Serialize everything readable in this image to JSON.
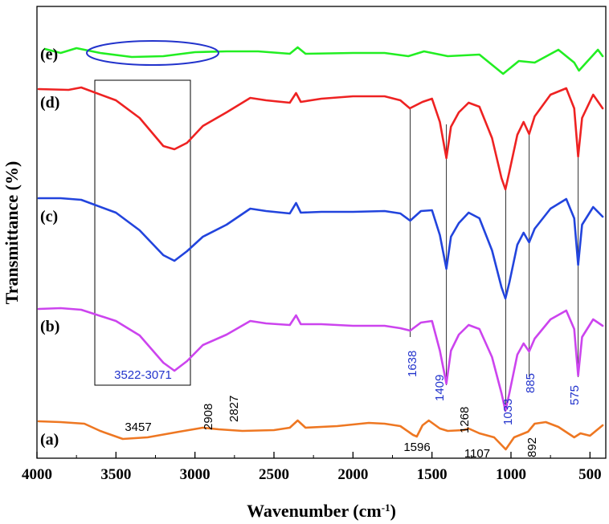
{
  "chart_data": {
    "type": "line",
    "xlabel": "Wavenumber (cm",
    "xlabel_sup": "-1",
    "xlabel_end": ")",
    "ylabel": "Transmittance (%)",
    "xlim": [
      4000,
      400
    ],
    "x_reversed": true,
    "xticks": [
      4000,
      3500,
      3000,
      2500,
      2000,
      1500,
      1000,
      500
    ],
    "xtick_labels": [
      "4000",
      "3500",
      "3000",
      "2500",
      "2000",
      "1500",
      "1000",
      "500"
    ],
    "y_units": "arbitrary (curves stacked with offsets)",
    "series": [
      {
        "name": "(e)",
        "color": "#22ee22",
        "points": [
          [
            3950,
            61
          ],
          [
            3850,
            66
          ],
          [
            3750,
            60
          ],
          [
            3600,
            66
          ],
          [
            3400,
            71
          ],
          [
            3200,
            70
          ],
          [
            3000,
            65
          ],
          [
            2800,
            64
          ],
          [
            2600,
            64
          ],
          [
            2400,
            67
          ],
          [
            2350,
            59
          ],
          [
            2300,
            67
          ],
          [
            2000,
            66
          ],
          [
            1800,
            66
          ],
          [
            1650,
            70
          ],
          [
            1550,
            64
          ],
          [
            1400,
            70
          ],
          [
            1200,
            68
          ],
          [
            1050,
            92
          ],
          [
            950,
            76
          ],
          [
            850,
            78
          ],
          [
            700,
            62
          ],
          [
            600,
            78
          ],
          [
            570,
            88
          ],
          [
            450,
            62
          ],
          [
            420,
            70
          ]
        ]
      },
      {
        "name": "(d)",
        "color": "#ee2222",
        "points": [
          [
            3990,
            111
          ],
          [
            3800,
            112
          ],
          [
            3720,
            109
          ],
          [
            3500,
            125
          ],
          [
            3350,
            147
          ],
          [
            3200,
            182
          ],
          [
            3130,
            186
          ],
          [
            3050,
            178
          ],
          [
            2950,
            157
          ],
          [
            2800,
            140
          ],
          [
            2650,
            122
          ],
          [
            2550,
            125
          ],
          [
            2400,
            128
          ],
          [
            2360,
            116
          ],
          [
            2330,
            127
          ],
          [
            2200,
            123
          ],
          [
            2000,
            120
          ],
          [
            1800,
            120
          ],
          [
            1700,
            125
          ],
          [
            1640,
            135
          ],
          [
            1560,
            127
          ],
          [
            1500,
            123
          ],
          [
            1450,
            152
          ],
          [
            1409,
            197
          ],
          [
            1380,
            158
          ],
          [
            1330,
            140
          ],
          [
            1268,
            128
          ],
          [
            1200,
            133
          ],
          [
            1120,
            172
          ],
          [
            1060,
            222
          ],
          [
            1035,
            236
          ],
          [
            1010,
            214
          ],
          [
            960,
            168
          ],
          [
            920,
            152
          ],
          [
            885,
            167
          ],
          [
            850,
            145
          ],
          [
            750,
            118
          ],
          [
            650,
            110
          ],
          [
            600,
            135
          ],
          [
            575,
            195
          ],
          [
            550,
            147
          ],
          [
            480,
            118
          ],
          [
            420,
            135
          ]
        ]
      },
      {
        "name": "(c)",
        "color": "#2244dd",
        "points": [
          [
            3990,
            247
          ],
          [
            3850,
            247
          ],
          [
            3720,
            249
          ],
          [
            3500,
            265
          ],
          [
            3350,
            287
          ],
          [
            3200,
            318
          ],
          [
            3130,
            325
          ],
          [
            3050,
            313
          ],
          [
            2950,
            295
          ],
          [
            2800,
            280
          ],
          [
            2650,
            260
          ],
          [
            2550,
            263
          ],
          [
            2400,
            266
          ],
          [
            2360,
            253
          ],
          [
            2330,
            265
          ],
          [
            2200,
            264
          ],
          [
            2000,
            264
          ],
          [
            1800,
            263
          ],
          [
            1700,
            266
          ],
          [
            1638,
            275
          ],
          [
            1570,
            263
          ],
          [
            1500,
            262
          ],
          [
            1450,
            293
          ],
          [
            1409,
            335
          ],
          [
            1380,
            295
          ],
          [
            1330,
            278
          ],
          [
            1268,
            265
          ],
          [
            1200,
            272
          ],
          [
            1120,
            312
          ],
          [
            1060,
            358
          ],
          [
            1035,
            372
          ],
          [
            1010,
            352
          ],
          [
            960,
            305
          ],
          [
            920,
            290
          ],
          [
            885,
            302
          ],
          [
            850,
            285
          ],
          [
            750,
            260
          ],
          [
            650,
            248
          ],
          [
            600,
            272
          ],
          [
            575,
            330
          ],
          [
            550,
            280
          ],
          [
            480,
            258
          ],
          [
            420,
            270
          ]
        ]
      },
      {
        "name": "(b)",
        "color": "#cc44ee",
        "points": [
          [
            3990,
            385
          ],
          [
            3850,
            384
          ],
          [
            3720,
            386
          ],
          [
            3500,
            400
          ],
          [
            3350,
            418
          ],
          [
            3200,
            452
          ],
          [
            3130,
            462
          ],
          [
            3050,
            450
          ],
          [
            2950,
            430
          ],
          [
            2800,
            417
          ],
          [
            2650,
            400
          ],
          [
            2550,
            403
          ],
          [
            2400,
            405
          ],
          [
            2360,
            393
          ],
          [
            2330,
            404
          ],
          [
            2200,
            404
          ],
          [
            2000,
            406
          ],
          [
            1800,
            406
          ],
          [
            1700,
            409
          ],
          [
            1638,
            412
          ],
          [
            1570,
            402
          ],
          [
            1500,
            400
          ],
          [
            1450,
            437
          ],
          [
            1409,
            478
          ],
          [
            1380,
            437
          ],
          [
            1330,
            417
          ],
          [
            1268,
            405
          ],
          [
            1200,
            410
          ],
          [
            1120,
            445
          ],
          [
            1060,
            490
          ],
          [
            1035,
            512
          ],
          [
            1010,
            490
          ],
          [
            960,
            442
          ],
          [
            920,
            428
          ],
          [
            885,
            438
          ],
          [
            850,
            422
          ],
          [
            750,
            398
          ],
          [
            650,
            387
          ],
          [
            600,
            410
          ],
          [
            575,
            468
          ],
          [
            550,
            420
          ],
          [
            480,
            398
          ],
          [
            420,
            406
          ]
        ]
      },
      {
        "name": "(a)",
        "color": "#ee7722",
        "points": [
          [
            3990,
            525
          ],
          [
            3850,
            526
          ],
          [
            3700,
            528
          ],
          [
            3600,
            537
          ],
          [
            3457,
            547
          ],
          [
            3300,
            545
          ],
          [
            3100,
            538
          ],
          [
            2950,
            533
          ],
          [
            2850,
            535
          ],
          [
            2700,
            537
          ],
          [
            2500,
            536
          ],
          [
            2400,
            533
          ],
          [
            2350,
            524
          ],
          [
            2300,
            533
          ],
          [
            2100,
            531
          ],
          [
            1900,
            527
          ],
          [
            1800,
            528
          ],
          [
            1700,
            531
          ],
          [
            1620,
            542
          ],
          [
            1596,
            544
          ],
          [
            1560,
            530
          ],
          [
            1520,
            524
          ],
          [
            1450,
            534
          ],
          [
            1400,
            537
          ],
          [
            1300,
            536
          ],
          [
            1268,
            534
          ],
          [
            1200,
            540
          ],
          [
            1107,
            545
          ],
          [
            1033,
            560
          ],
          [
            980,
            545
          ],
          [
            892,
            538
          ],
          [
            850,
            528
          ],
          [
            780,
            526
          ],
          [
            700,
            532
          ],
          [
            600,
            545
          ],
          [
            560,
            540
          ],
          [
            500,
            543
          ],
          [
            420,
            530
          ]
        ]
      }
    ],
    "curve_labels": [
      "(e)",
      "(d)",
      "(c)",
      "(b)",
      "(a)"
    ],
    "rectangle_label": "3522-3071",
    "marker_lines": [
      {
        "x": 1638,
        "label": "1638"
      },
      {
        "x": 1409,
        "label": "1409"
      },
      {
        "x": 1033,
        "label": "1033"
      },
      {
        "x": 885,
        "label": "885"
      },
      {
        "x": 575,
        "label": "575"
      }
    ],
    "curve_a_annotations": [
      {
        "x": 3457,
        "label": "3457"
      },
      {
        "x": 2908,
        "label": "2908"
      },
      {
        "x": 2827,
        "label": "2827"
      },
      {
        "x": 1596,
        "label": "1596"
      },
      {
        "x": 1268,
        "label": "1268"
      },
      {
        "x": 1107,
        "label": "1107"
      },
      {
        "x": 892,
        "label": "892"
      }
    ],
    "annotation_color_blue": "#2233cc",
    "annotation_color_black": "#000000",
    "ellipse_color": "#2233cc"
  }
}
